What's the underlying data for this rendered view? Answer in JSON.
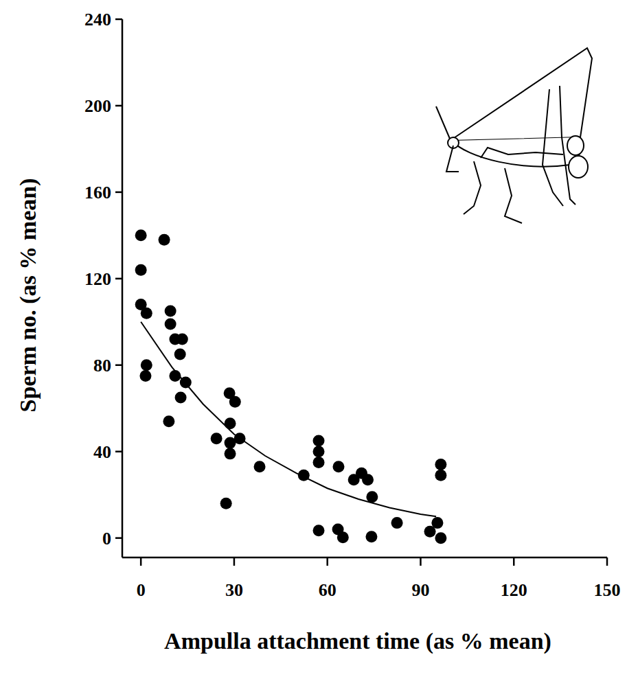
{
  "chart_data": {
    "type": "scatter",
    "x_label": "Ampulla attachment time (as % mean)",
    "y_label": "Sperm no. (as % mean)",
    "xlim": [
      -6,
      150
    ],
    "ylim": [
      -9,
      240
    ],
    "xticks": [
      0,
      30,
      60,
      90,
      120,
      150
    ],
    "yticks": [
      0,
      40,
      80,
      120,
      160,
      200,
      240
    ],
    "grid": false,
    "series": [
      {
        "type": "scatter",
        "marker": "circle",
        "color": "#000000",
        "x": [
          0,
          0,
          7.5,
          0,
          1.8,
          1.8,
          1.5,
          9.5,
          9.5,
          11,
          13.3,
          12.6,
          11,
          14.4,
          12.8,
          9,
          24.3,
          28.5,
          30.3,
          28.7,
          28.7,
          28.7,
          31.8,
          27.4,
          38.2,
          52.4,
          57.2,
          57.2,
          57.2,
          57.2,
          63.6,
          63.4,
          65,
          68.5,
          71,
          73,
          74.4,
          74.2,
          82.4,
          93,
          95.4,
          96.5,
          96.5,
          96.5
        ],
        "values": [
          140,
          124,
          138,
          108,
          104,
          80,
          75,
          105,
          99,
          92,
          92,
          85,
          75,
          72,
          65,
          54,
          46,
          67,
          63,
          53,
          44,
          39,
          46,
          16,
          33,
          29,
          45,
          40,
          35,
          3.5,
          33,
          4,
          0.3,
          27,
          30,
          27,
          19,
          0.6,
          7,
          3,
          7,
          34,
          29,
          0
        ]
      },
      {
        "type": "line",
        "line_style": "solid",
        "color": "#000000",
        "x": [
          0,
          10,
          20,
          30,
          40,
          50,
          60,
          70,
          80,
          90,
          95
        ],
        "values": [
          100,
          79,
          62,
          48,
          38,
          30,
          23,
          18,
          14,
          11,
          10
        ]
      }
    ]
  }
}
